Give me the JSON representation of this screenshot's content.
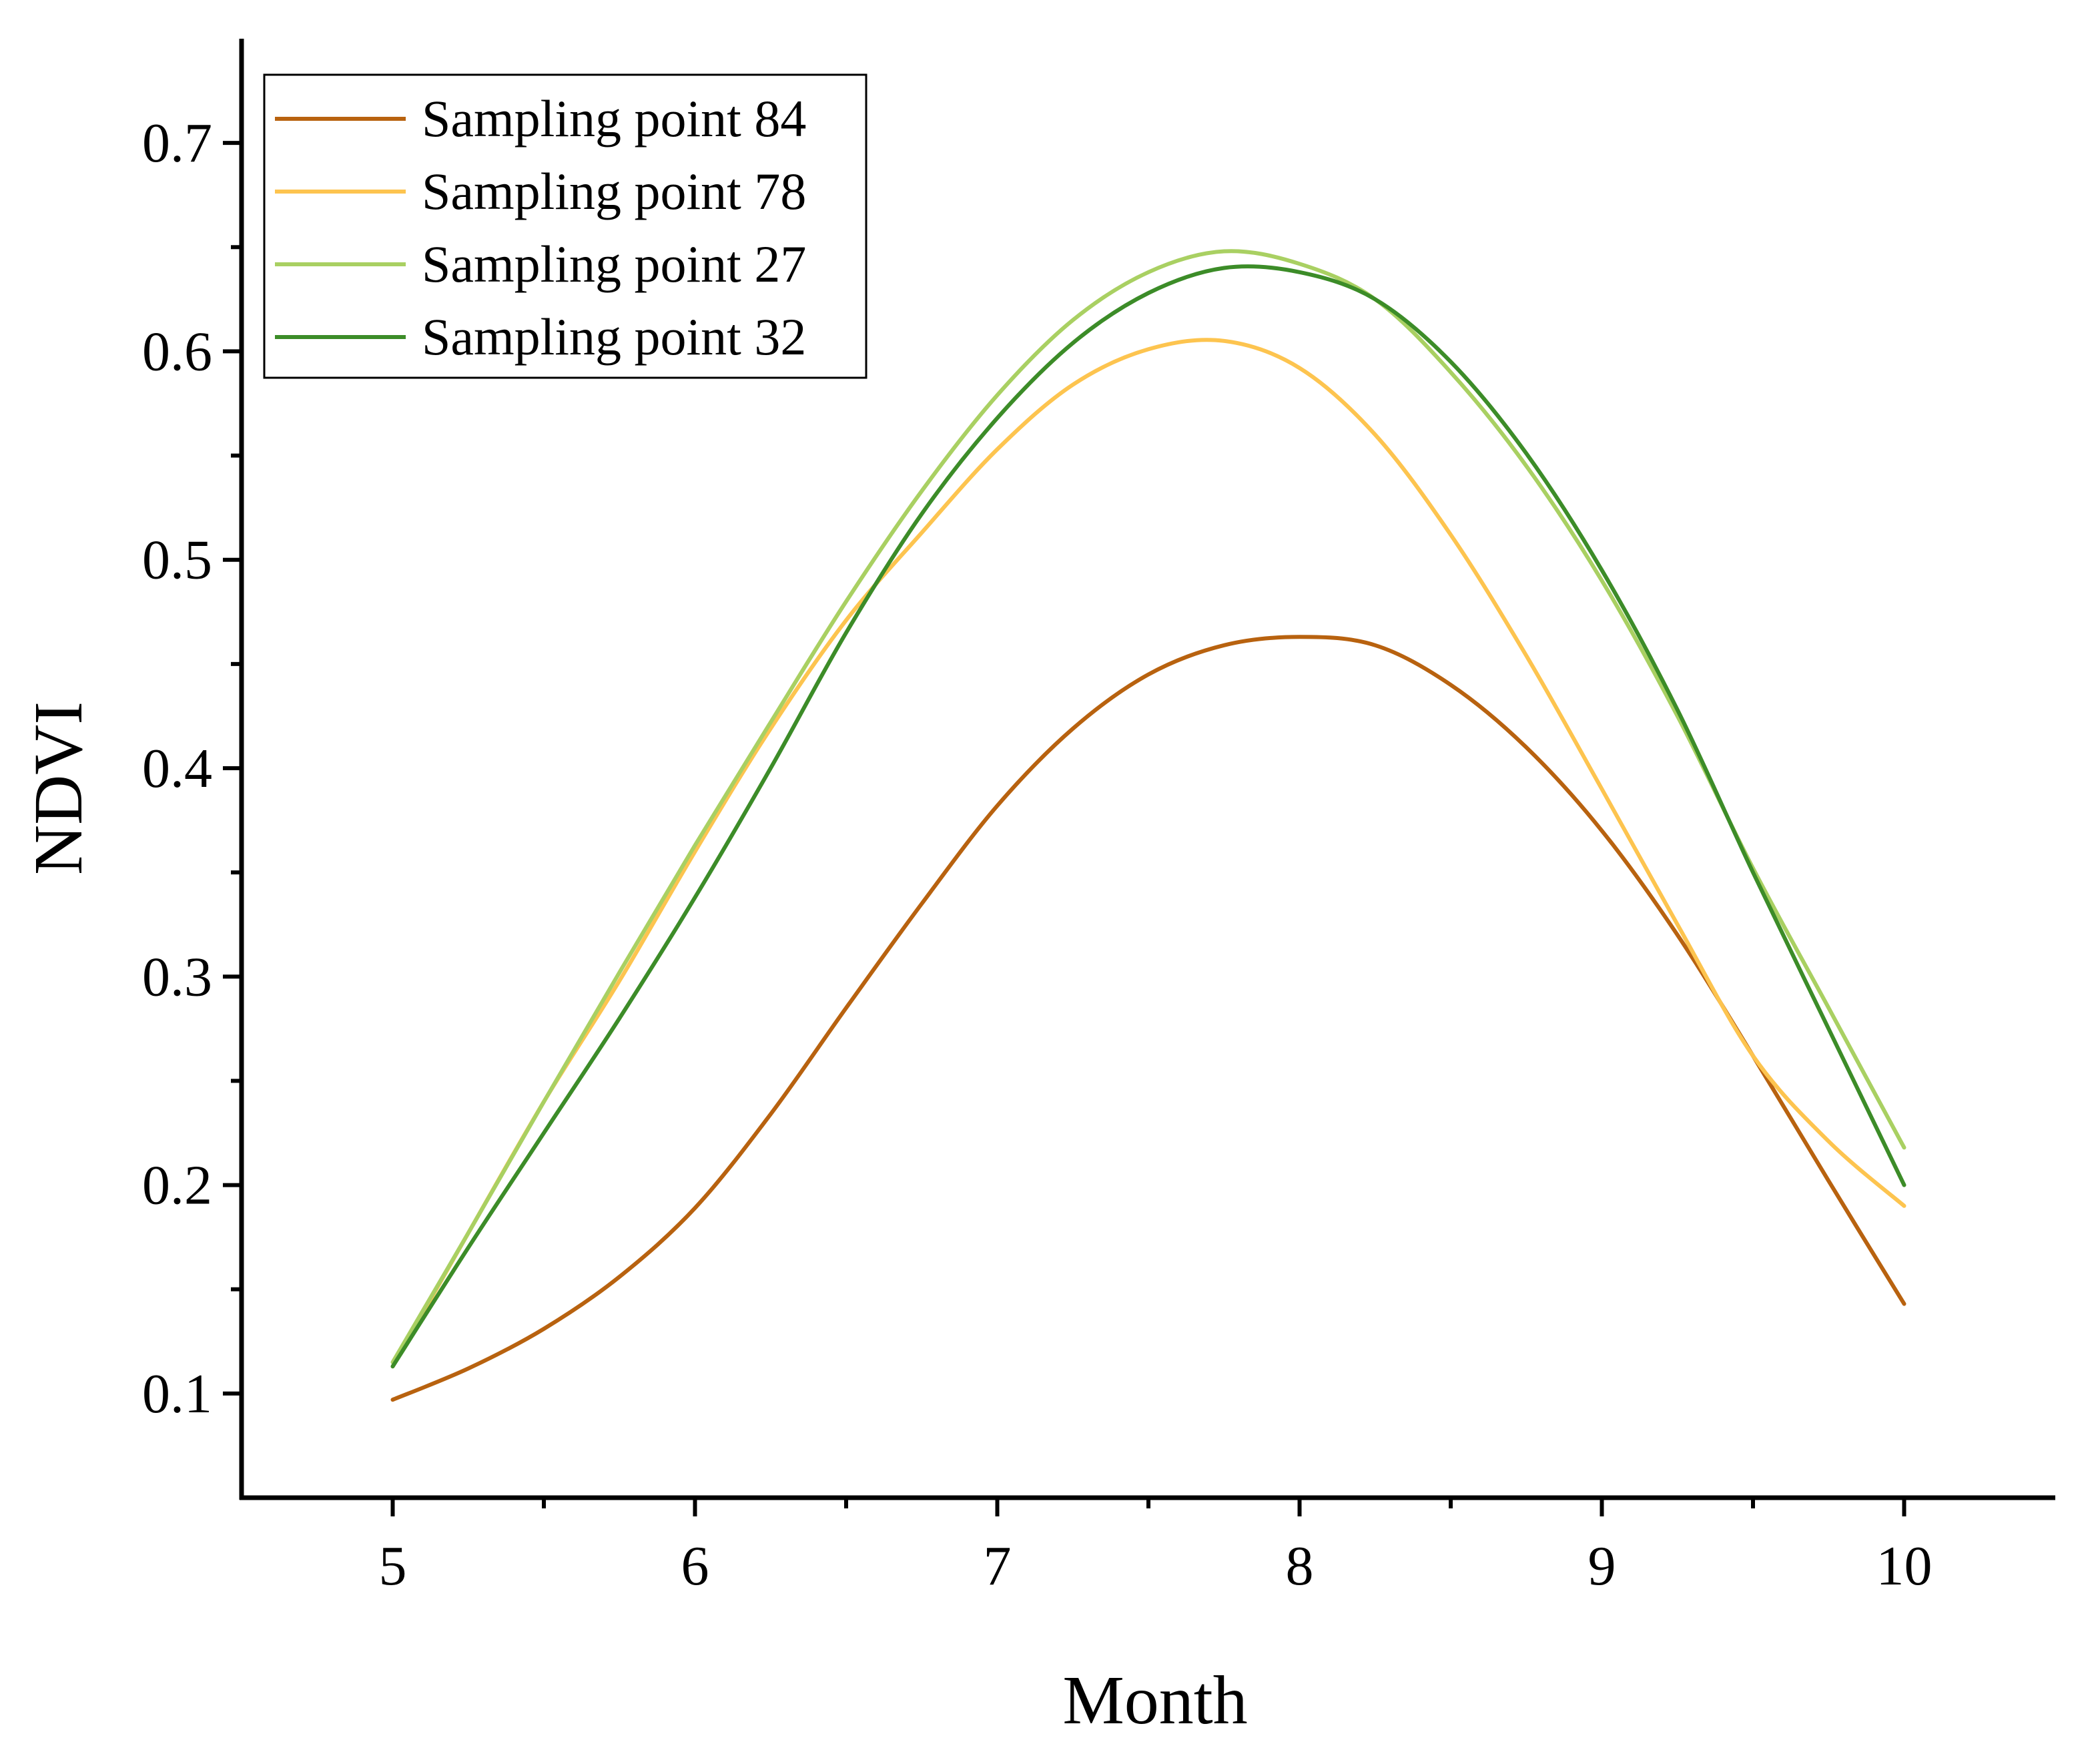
{
  "chart_data": {
    "type": "line",
    "title": "",
    "xlabel": "Month",
    "ylabel": "NDVI",
    "xlim": [
      4.5,
      10.5
    ],
    "ylim": [
      0.05,
      0.75
    ],
    "x_ticks": [
      5,
      6,
      7,
      8,
      9,
      10
    ],
    "x_tick_labels": [
      "5",
      "6",
      "7",
      "8",
      "9",
      "10"
    ],
    "y_ticks": [
      0.1,
      0.2,
      0.3,
      0.4,
      0.5,
      0.6,
      0.7
    ],
    "y_tick_labels": [
      "0.1",
      "0.2",
      "0.3",
      "0.4",
      "0.5",
      "0.6",
      "0.7"
    ],
    "y_minor_step": 0.05,
    "grid": false,
    "legend_position": "top-left",
    "series": [
      {
        "name": "Sampling point 84",
        "color": "#B8620F",
        "x": [
          5,
          5.25,
          5.5,
          5.75,
          6,
          6.25,
          6.5,
          6.75,
          7,
          7.25,
          7.5,
          7.75,
          8,
          8.25,
          8.5,
          8.75,
          9,
          9.25,
          9.5,
          9.75,
          10
        ],
        "values": [
          0.097,
          0.112,
          0.131,
          0.156,
          0.189,
          0.234,
          0.285,
          0.335,
          0.382,
          0.419,
          0.445,
          0.459,
          0.463,
          0.459,
          0.44,
          0.41,
          0.37,
          0.32,
          0.262,
          0.202,
          0.143
        ]
      },
      {
        "name": "Sampling point 78",
        "color": "#FDC44F",
        "x": [
          5,
          5.25,
          5.5,
          5.75,
          6,
          6.25,
          6.5,
          6.75,
          7,
          7.25,
          7.5,
          7.75,
          8,
          8.25,
          8.5,
          8.75,
          9,
          9.25,
          9.5,
          9.75,
          10
        ],
        "values": [
          0.113,
          0.177,
          0.24,
          0.298,
          0.36,
          0.419,
          0.471,
          0.513,
          0.553,
          0.584,
          0.601,
          0.605,
          0.592,
          0.56,
          0.512,
          0.454,
          0.39,
          0.325,
          0.262,
          0.221,
          0.19
        ]
      },
      {
        "name": "Sampling point 27",
        "color": "#A9D062",
        "x": [
          5,
          5.25,
          5.5,
          5.75,
          6,
          6.25,
          6.5,
          6.75,
          7,
          7.25,
          7.5,
          7.75,
          8,
          8.25,
          8.5,
          8.75,
          9,
          9.25,
          9.5,
          9.75,
          10
        ],
        "values": [
          0.115,
          0.177,
          0.24,
          0.302,
          0.363,
          0.422,
          0.48,
          0.533,
          0.579,
          0.615,
          0.638,
          0.648,
          0.642,
          0.625,
          0.59,
          0.545,
          0.49,
          0.425,
          0.352,
          0.285,
          0.218
        ]
      },
      {
        "name": "Sampling point 32",
        "color": "#3C8C28",
        "x": [
          5,
          5.25,
          5.5,
          5.75,
          6,
          6.25,
          6.5,
          6.75,
          7,
          7.25,
          7.5,
          7.75,
          8,
          8.25,
          8.5,
          8.75,
          9,
          9.25,
          9.5,
          9.75,
          10
        ],
        "values": [
          0.113,
          0.17,
          0.225,
          0.28,
          0.338,
          0.4,
          0.465,
          0.522,
          0.568,
          0.604,
          0.628,
          0.64,
          0.638,
          0.625,
          0.595,
          0.551,
          0.495,
          0.428,
          0.35,
          0.275,
          0.2
        ]
      }
    ]
  }
}
